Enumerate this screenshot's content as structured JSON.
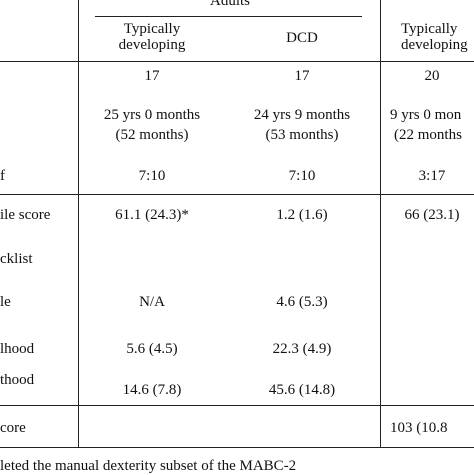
{
  "table": {
    "group_header": "Adults",
    "columns": [
      {
        "line1": "Typically",
        "line2": "developing"
      },
      {
        "line1": "DCD",
        "line2": ""
      },
      {
        "line1": "Typically",
        "line2": "developing"
      }
    ],
    "rows": [
      {
        "label": "",
        "values": [
          "17",
          "17",
          "20"
        ]
      },
      {
        "label": "",
        "values": [
          "25 yrs 0 months",
          "24 yrs 9 months",
          "9 yrs 0 mon"
        ],
        "sub_values": [
          "(52 months)",
          "(53 months)",
          "(22 months"
        ]
      },
      {
        "label": "f",
        "values": [
          "7:10",
          "7:10",
          "3:17"
        ]
      },
      {
        "label": "ile score",
        "values": [
          "61.1 (24.3)*",
          "1.2 (1.6)",
          "66 (23.1)"
        ]
      },
      {
        "label": "cklist",
        "values": [
          "",
          "",
          ""
        ]
      },
      {
        "label": "le",
        "values": [
          "N/A",
          "4.6 (5.3)",
          ""
        ]
      },
      {
        "label": "lhood",
        "values": [
          "5.6 (4.5)",
          "22.3 (4.9)",
          ""
        ]
      },
      {
        "label": "thood",
        "values": [
          "",
          "",
          ""
        ]
      },
      {
        "label": "",
        "values": [
          "14.6 (7.8)",
          "45.6 (14.8)",
          ""
        ]
      },
      {
        "label": "core",
        "values": [
          "",
          "",
          "103 (10.8"
        ]
      }
    ],
    "footnote": "leted the manual dexterity subset of the MABC-2"
  }
}
